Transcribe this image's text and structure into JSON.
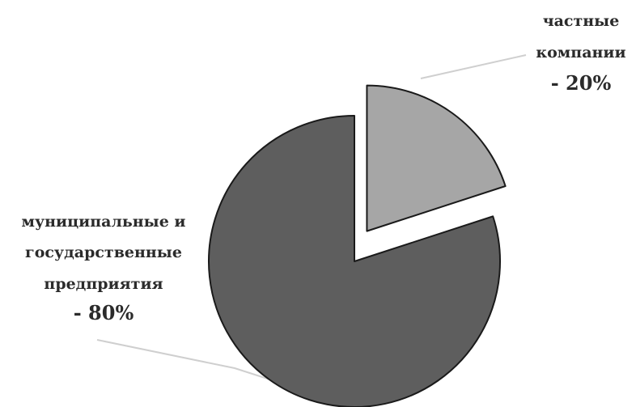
{
  "chart_data": {
    "type": "pie",
    "title": "",
    "slices": [
      {
        "label_lines": [
          "частные",
          "компании"
        ],
        "value_text": "- 20%",
        "value": 20,
        "color": "#a6a6a6",
        "exploded": true
      },
      {
        "label_lines": [
          "муниципальные и",
          "государственные",
          "предприятия"
        ],
        "value_text": "- 80%",
        "value": 80,
        "color": "#5e5e5e",
        "exploded": false
      }
    ],
    "slice_outline_color": "#1a1a1a",
    "leader_line_color": "#cfcfcf",
    "legend": "none"
  }
}
